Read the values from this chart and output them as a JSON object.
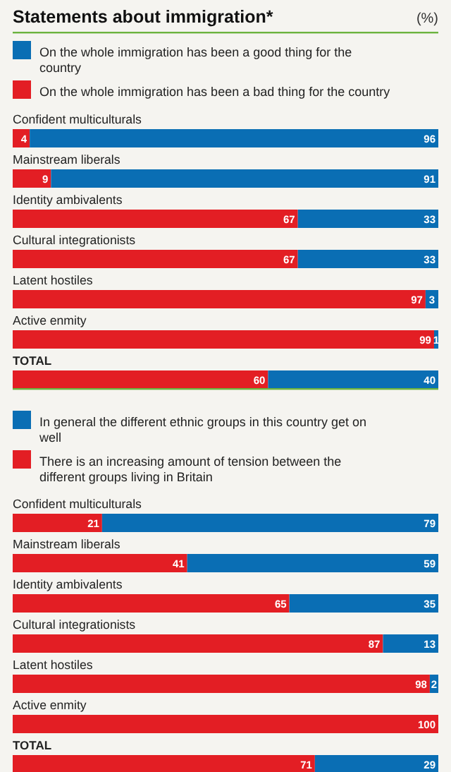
{
  "chart_data": [
    {
      "type": "bar",
      "orientation": "horizontal",
      "stacked": true,
      "title": "Statements about immigration*",
      "annotations": [
        "(%)"
      ],
      "legend": "top",
      "data_labels": true,
      "categories": [
        "Confident multiculturals",
        "Mainstream liberals",
        "Identity ambivalents",
        "Cultural integrationists",
        "Latent hostiles",
        "Active enmity",
        "TOTAL"
      ],
      "series": [
        {
          "name": "On the whole immigration has been a bad thing for the country",
          "color": "#e31e24",
          "values": [
            4,
            9,
            67,
            67,
            97,
            99,
            60
          ]
        },
        {
          "name": "On the whole immigration has been a good thing for the country",
          "color": "#0a6eb4",
          "values": [
            96,
            91,
            33,
            33,
            3,
            1,
            40
          ]
        }
      ]
    },
    {
      "type": "bar",
      "orientation": "horizontal",
      "stacked": true,
      "legend": "top",
      "categories": [
        "Confident multiculturals",
        "Mainstream liberals",
        "Identity ambivalents",
        "Cultural integrationists",
        "Latent hostiles",
        "Active enmity",
        "TOTAL"
      ],
      "series": [
        {
          "name": "There is an increasing amount of tension between the different groups living in Britain",
          "color": "#e31e24",
          "values": [
            21,
            41,
            65,
            87,
            98,
            100,
            71
          ],
          "value_labels": [
            "21",
            "41",
            "65",
            "87",
            "98",
            "100",
            "71"
          ]
        },
        {
          "name": "In general the different ethnic groups in this country get on well",
          "color": "#0a6eb4",
          "values": [
            79,
            59,
            35,
            13,
            2,
            0,
            29
          ],
          "value_labels": [
            "79",
            "59",
            "35",
            "13",
            "2",
            null,
            "29"
          ]
        }
      ]
    }
  ]
}
